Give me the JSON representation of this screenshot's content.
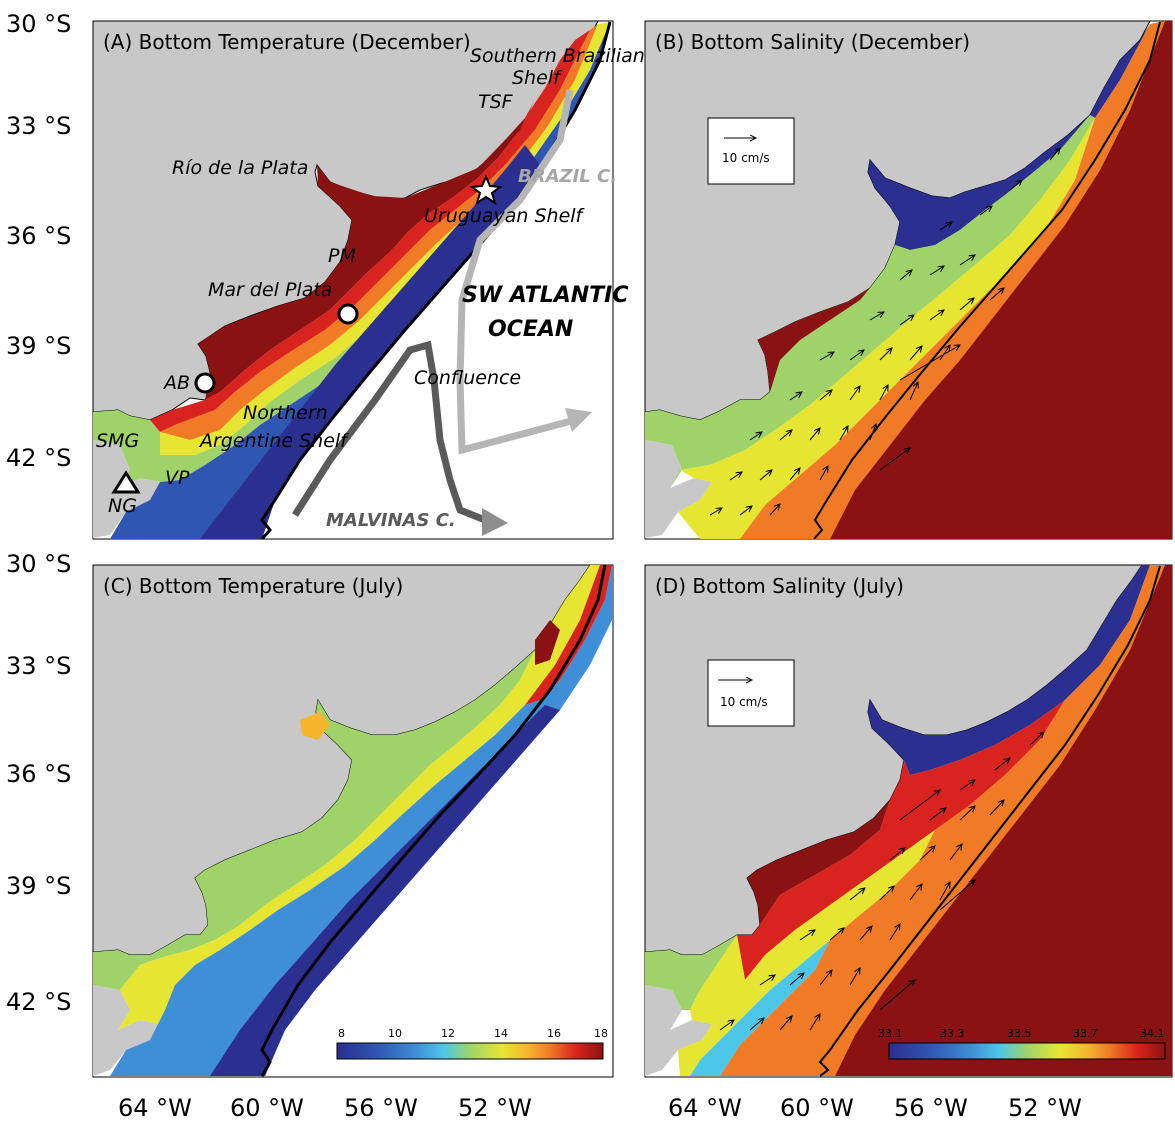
{
  "panels": {
    "a": {
      "title": "(A) Bottom Temperature (December)"
    },
    "b": {
      "title": "(B) Bottom Salinity (December)",
      "scale_label": "10 cm/s"
    },
    "c": {
      "title": "(C) Bottom Temperature (July)"
    },
    "d": {
      "title": "(D) Bottom Salinity (July)",
      "scale_label": "10 cm/s"
    }
  },
  "axes": {
    "lat_ticks": [
      "30 °S",
      "33 °S",
      "36 °S",
      "39 °S",
      "42 °S"
    ],
    "lon_ticks": [
      "64 °W",
      "60 °W",
      "56 °W",
      "52 °W"
    ]
  },
  "place_labels": {
    "southern_brazilian_shelf_1": "Southern Brazilian",
    "southern_brazilian_shelf_2": "Shelf",
    "tsf": "TSF",
    "rio_de_la_plata": "Río de la Plata",
    "uruguayan_shelf": "Uruguayan Shelf",
    "pm": "PM",
    "mar_del_plata": "Mar del Plata",
    "ab": "AB",
    "northern": "Northern",
    "argentine_shelf": "Argentine  Shelf",
    "smg": "SMG",
    "vp": "VP",
    "ng": "NG",
    "confluence": "Confluence",
    "sw_atlantic_1": "SW ATLANTIC",
    "sw_atlantic_2": "OCEAN"
  },
  "currents": {
    "brazil": {
      "label": "BRAZIL C.",
      "color": "#a6a6a6"
    },
    "malvinas": {
      "label": "MALVINAS C.",
      "color": "#5a5a5a"
    }
  },
  "colorbars": {
    "temperature": {
      "ticks": [
        "8",
        "10",
        "12",
        "14",
        "16",
        "18"
      ],
      "range": [
        8,
        18
      ]
    },
    "salinity": {
      "ticks": [
        "33.1",
        "33.3",
        "33.5",
        "33.7",
        "34.1"
      ],
      "range": [
        33.1,
        34.1
      ]
    }
  },
  "colors": {
    "land": "#c8c8c8",
    "ocean": "#ffffff",
    "ramp": [
      "#2b2f8f",
      "#2f56b3",
      "#3f8fd6",
      "#4cc7e8",
      "#9fd36a",
      "#e6e632",
      "#f5b52c",
      "#f07a25",
      "#d9231e",
      "#8b1212"
    ]
  }
}
